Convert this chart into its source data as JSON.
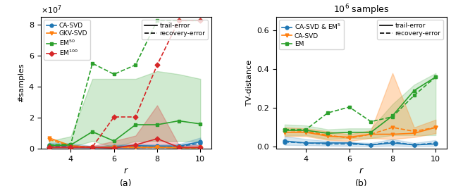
{
  "r_values": [
    3,
    4,
    5,
    6,
    7,
    8,
    9,
    10
  ],
  "left": {
    "ylabel": "#samples",
    "xlabel": "r",
    "caption": "(a)",
    "ylim": [
      0,
      85000000.0
    ],
    "yticks": [
      0,
      20000000.0,
      40000000.0,
      60000000.0,
      80000000.0
    ],
    "CA_SVD_trail": [
      2500000.0,
      2000000.0,
      1000000.0,
      1500000.0,
      2000000.0,
      1800000.0,
      1800000.0,
      4500000.0
    ],
    "CA_SVD_recovery": [
      2000000.0,
      1500000.0,
      800000.0,
      1200000.0,
      1500000.0,
      1400000.0,
      1500000.0,
      3500000.0
    ],
    "CA_SVD_fill_lo": [
      1000000.0,
      1000000.0,
      400000.0,
      600000.0,
      800000.0,
      700000.0,
      700000.0,
      1500000.0
    ],
    "CA_SVD_fill_hi": [
      4000000.0,
      3500000.0,
      1800000.0,
      2500000.0,
      3200000.0,
      2800000.0,
      3000000.0,
      7200000.0
    ],
    "GKV_SVD_trail": [
      7000000.0,
      2000000.0,
      1000000.0,
      1200000.0,
      1000000.0,
      1000000.0,
      800000.0,
      800000.0
    ],
    "GKV_SVD_recovery": [
      6000000.0,
      1500000.0,
      800000.0,
      1000000.0,
      800000.0,
      800000.0,
      650000.0,
      650000.0
    ],
    "EM50_trail": [
      2000000.0,
      2500000.0,
      11000000.0,
      5000000.0,
      15500000.0,
      15500000.0,
      18000000.0,
      16000000.0
    ],
    "EM50_recovery": [
      2500000.0,
      3000000.0,
      55000000.0,
      48000000.0,
      54000000.0,
      82500000.0,
      82500000.0,
      82500000.0
    ],
    "EM50_fill_lo": [
      800000.0,
      1000000.0,
      5000000.0,
      1000000.0,
      5000000.0,
      5000000.0,
      5000000.0,
      5000000.0
    ],
    "EM50_fill_hi": [
      5000000.0,
      8000000.0,
      45000000.0,
      45000000.0,
      45000000.0,
      50000000.0,
      48000000.0,
      45000000.0
    ],
    "EM100_trail": [
      1000000.0,
      1000000.0,
      1000000.0,
      500000.0,
      2500000.0,
      6500000.0,
      1000000.0,
      1000000.0
    ],
    "EM100_recovery": [
      1200000.0,
      1200000.0,
      1200000.0,
      20500000.0,
      20500000.0,
      54000000.0,
      82500000.0,
      82500000.0
    ],
    "EM100_fill_lo": [
      300000.0,
      300000.0,
      300000.0,
      100000.0,
      500000.0,
      1500000.0,
      200000.0,
      200000.0
    ],
    "EM100_fill_hi": [
      2200000.0,
      2200000.0,
      1800000.0,
      5000000.0,
      8500000.0,
      28000000.0,
      2500000.0,
      2500000.0
    ],
    "CA_SVD_color": "#1f77b4",
    "GKV_SVD_color": "#ff7f0e",
    "EM50_color": "#2ca02c",
    "EM100_color": "#d62728"
  },
  "right": {
    "title": "$10^6$ samples",
    "ylabel": "TV-distance",
    "xlabel": "r",
    "caption": "(b)",
    "ylim": [
      -0.01,
      0.67
    ],
    "yticks": [
      0.0,
      0.2,
      0.4,
      0.6
    ],
    "CASVD_EM5_trail": [
      0.03,
      0.02,
      0.02,
      0.02,
      0.01,
      0.02,
      0.01,
      0.015
    ],
    "CASVD_EM5_recovery": [
      0.025,
      0.02,
      0.015,
      0.015,
      0.01,
      0.025,
      0.01,
      0.02
    ],
    "CASVD_EM5_fill_lo": [
      0.01,
      0.008,
      0.006,
      0.005,
      0.003,
      0.006,
      0.003,
      0.005
    ],
    "CASVD_EM5_fill_hi": [
      0.055,
      0.04,
      0.03,
      0.025,
      0.02,
      0.04,
      0.02,
      0.035
    ],
    "CASVD_trail": [
      0.075,
      0.075,
      0.055,
      0.05,
      0.065,
      0.065,
      0.07,
      0.1
    ],
    "CASVD_recovery": [
      0.085,
      0.08,
      0.06,
      0.045,
      0.065,
      0.1,
      0.08,
      0.1
    ],
    "CASVD_fill_lo": [
      0.055,
      0.055,
      0.035,
      0.03,
      0.045,
      0.04,
      0.05,
      0.07
    ],
    "CASVD_fill_hi": [
      0.1,
      0.095,
      0.08,
      0.065,
      0.085,
      0.38,
      0.1,
      0.14
    ],
    "EM_trail": [
      0.085,
      0.085,
      0.07,
      0.075,
      0.075,
      0.16,
      0.29,
      0.36
    ],
    "EM_recovery": [
      0.09,
      0.09,
      0.175,
      0.205,
      0.13,
      0.155,
      0.265,
      0.36
    ],
    "EM_fill_lo": [
      0.06,
      0.06,
      0.04,
      0.045,
      0.045,
      0.06,
      0.06,
      0.06
    ],
    "EM_fill_hi": [
      0.115,
      0.11,
      0.09,
      0.095,
      0.095,
      0.22,
      0.32,
      0.38
    ],
    "CASVD_EM5_color": "#1f77b4",
    "CASVD_color": "#ff7f0e",
    "EM_color": "#2ca02c"
  }
}
